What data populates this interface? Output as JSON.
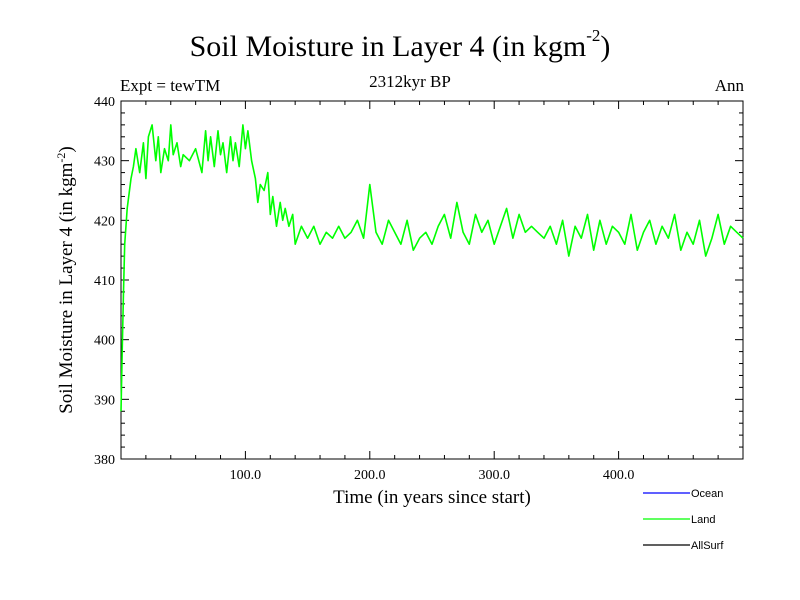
{
  "header": {
    "title_main": "Soil Moisture in Layer 4 (in kgm",
    "title_exp": "-2",
    "title_close": ")",
    "experiment": "Expt = tewTM",
    "period": "2312kyr BP",
    "season": "Ann"
  },
  "chart_data": {
    "type": "line",
    "title": "Soil Moisture in Layer 4 (in kgm-2)",
    "xlabel": "Time (in years since start)",
    "ylabel_main": "Soil Moisture in Layer 4 (in kgm",
    "ylabel_exp": "-2",
    "ylabel_close": ")",
    "xlim": [
      0,
      500
    ],
    "ylim": [
      380,
      440
    ],
    "xticks": [
      100,
      200,
      300,
      400
    ],
    "xtick_labels": [
      "100.0",
      "200.0",
      "300.0",
      "400.0"
    ],
    "yticks": [
      380,
      390,
      400,
      410,
      420,
      430,
      440
    ],
    "ytick_labels": [
      "380",
      "390",
      "400",
      "410",
      "420",
      "430",
      "440"
    ],
    "legend": [
      {
        "name": "Ocean",
        "color": "#0000ff"
      },
      {
        "name": "Land",
        "color": "#00ff00"
      },
      {
        "name": "AllSurf",
        "color": "#000000"
      }
    ],
    "series": [
      {
        "name": "Land",
        "color": "#00ff00",
        "x": [
          0,
          1,
          2,
          3,
          5,
          8,
          10,
          12,
          15,
          18,
          20,
          22,
          25,
          28,
          30,
          32,
          35,
          38,
          40,
          42,
          45,
          48,
          50,
          55,
          60,
          65,
          68,
          70,
          72,
          75,
          78,
          80,
          82,
          85,
          88,
          90,
          92,
          95,
          98,
          100,
          102,
          105,
          108,
          110,
          112,
          115,
          118,
          120,
          122,
          125,
          128,
          130,
          132,
          135,
          138,
          140,
          145,
          150,
          155,
          160,
          165,
          170,
          175,
          180,
          185,
          190,
          195,
          200,
          205,
          210,
          215,
          220,
          225,
          230,
          235,
          240,
          245,
          250,
          255,
          260,
          265,
          270,
          275,
          280,
          285,
          290,
          295,
          300,
          305,
          310,
          315,
          320,
          325,
          330,
          335,
          340,
          345,
          350,
          355,
          360,
          365,
          370,
          375,
          380,
          385,
          390,
          395,
          400,
          405,
          410,
          415,
          420,
          425,
          430,
          435,
          440,
          445,
          450,
          455,
          460,
          465,
          470,
          475,
          480,
          485,
          490,
          495,
          500
        ],
        "values": [
          388,
          398,
          408,
          416,
          422,
          427,
          429,
          432,
          428,
          433,
          427,
          434,
          436,
          430,
          434,
          428,
          432,
          430,
          436,
          431,
          433,
          429,
          431,
          430,
          432,
          428,
          435,
          430,
          434,
          429,
          435,
          431,
          433,
          428,
          434,
          430,
          433,
          429,
          436,
          432,
          435,
          430,
          427,
          423,
          426,
          425,
          428,
          421,
          424,
          419,
          423,
          420,
          422,
          419,
          421,
          416,
          419,
          417,
          419,
          416,
          418,
          417,
          419,
          417,
          418,
          420,
          417,
          426,
          418,
          416,
          420,
          418,
          416,
          420,
          415,
          417,
          418,
          416,
          419,
          421,
          417,
          423,
          418,
          416,
          421,
          418,
          420,
          416,
          419,
          422,
          417,
          421,
          418,
          419,
          418,
          417,
          419,
          416,
          420,
          414,
          419,
          417,
          421,
          415,
          420,
          416,
          419,
          418,
          416,
          421,
          415,
          418,
          420,
          416,
          419,
          417,
          421,
          415,
          418,
          416,
          420,
          414,
          417,
          421,
          416,
          419,
          418,
          417
        ]
      }
    ]
  }
}
